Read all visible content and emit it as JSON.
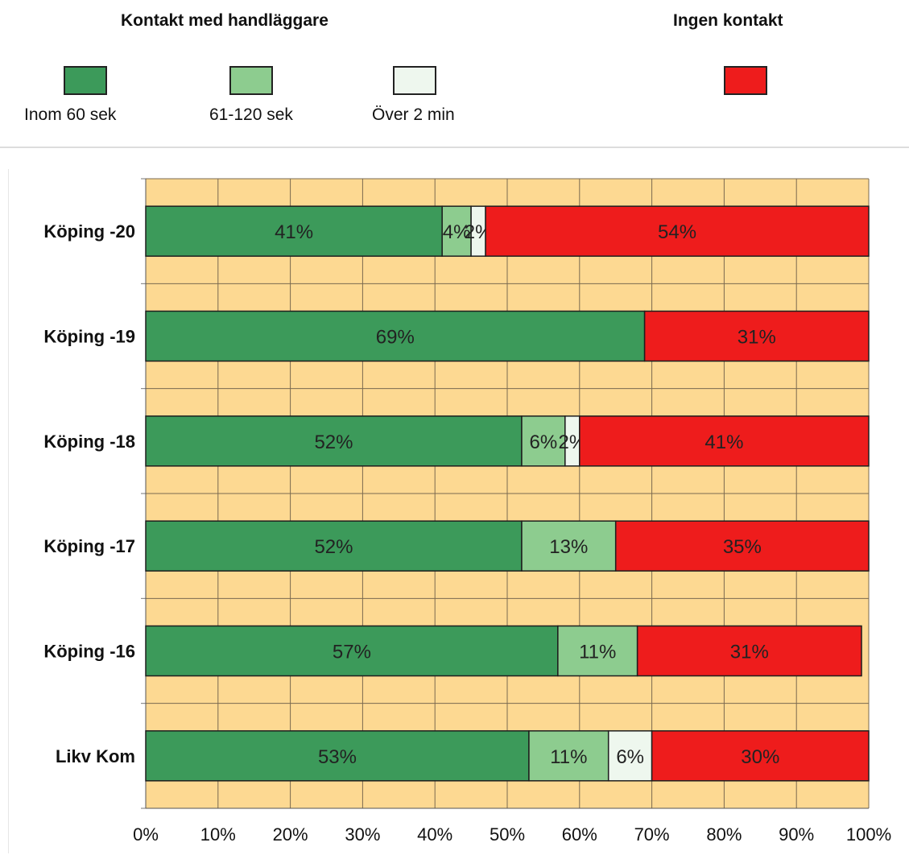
{
  "legend": {
    "group_contact": "Kontakt med handläggare",
    "group_no_contact": "Ingen kontakt",
    "items": [
      {
        "label": "Inom 60 sek",
        "color": "#3c9a5a"
      },
      {
        "label": "61-120 sek",
        "color": "#8dcc8f"
      },
      {
        "label": "Över 2 min",
        "color": "#eef7ee"
      },
      {
        "label": "",
        "color": "#ee1c1c"
      }
    ]
  },
  "chart_data": {
    "type": "bar",
    "orientation": "horizontal",
    "stacked": true,
    "percent": true,
    "categories": [
      "Köping -20",
      "Köping -19",
      "Köping -18",
      "Köping -17",
      "Köping -16",
      "Likv Kom"
    ],
    "series": [
      {
        "name": "Inom 60 sek",
        "color": "#3c9a5a",
        "values": [
          41,
          69,
          52,
          52,
          57,
          53
        ]
      },
      {
        "name": "61-120 sek",
        "color": "#8dcc8f",
        "values": [
          4,
          0,
          6,
          13,
          11,
          11
        ]
      },
      {
        "name": "Över 2 min",
        "color": "#eef7ee",
        "values": [
          2,
          0,
          2,
          0,
          0,
          6
        ]
      },
      {
        "name": "Ingen kontakt",
        "color": "#ee1c1c",
        "values": [
          54,
          31,
          41,
          35,
          31,
          30
        ]
      }
    ],
    "data_labels": [
      [
        "41%",
        "4%",
        "2%",
        "54%"
      ],
      [
        "69%",
        "",
        "",
        "31%"
      ],
      [
        "52%",
        "6%",
        "2%",
        "41%"
      ],
      [
        "52%",
        "13%",
        "",
        "35%"
      ],
      [
        "57%",
        "11%",
        "",
        "31%"
      ],
      [
        "53%",
        "11%",
        "6%",
        "30%"
      ]
    ],
    "x_ticks": [
      "0%",
      "10%",
      "20%",
      "30%",
      "40%",
      "50%",
      "60%",
      "70%",
      "80%",
      "90%",
      "100%"
    ],
    "xlim": [
      0,
      100
    ],
    "grid": true,
    "plot_background": "#fdd992",
    "legend_position": "top"
  }
}
